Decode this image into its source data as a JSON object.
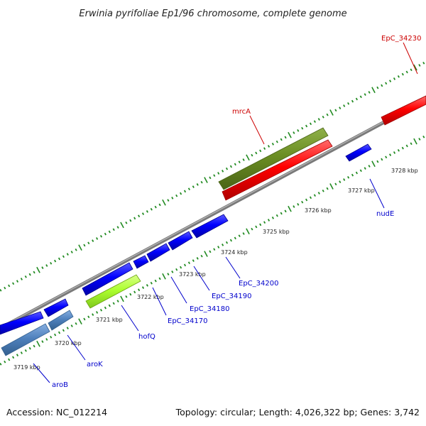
{
  "title": "Erwinia pyrifoliae Ep1/96 chromosome, complete genome",
  "footer": {
    "accession": "Accession: NC_012214",
    "topology": "Topology: circular; Length: 4,026,322 bp; Genes: 3,742"
  },
  "colors": {
    "forward_gene": "#ff0000",
    "reverse_gene": "#0000ff",
    "rna_gene": "#6b8e23",
    "selected_gene": "#adff2f",
    "operon_gene": "#4f81bd",
    "backbone": "#888888",
    "tick": "#228b22",
    "label_red": "#cc0000",
    "label_blue": "#0000cc"
  },
  "kbp_labels": [
    "3719 kbp",
    "3720 kbp",
    "3721 kbp",
    "3722 kbp",
    "3723 kbp",
    "3724 kbp",
    "3725 kbp",
    "3726 kbp",
    "3727 kbp",
    "3728 kbp"
  ],
  "gene_labels": [
    {
      "text": "EpC_34230",
      "color": "red"
    },
    {
      "text": "mrcA",
      "color": "red"
    },
    {
      "text": "nudE",
      "color": "blue"
    },
    {
      "text": "EpC_34200",
      "color": "blue"
    },
    {
      "text": "EpC_34190",
      "color": "blue"
    },
    {
      "text": "EpC_34180",
      "color": "blue"
    },
    {
      "text": "EpC_34170",
      "color": "blue"
    },
    {
      "text": "hofQ",
      "color": "blue"
    },
    {
      "text": "aroK",
      "color": "blue"
    },
    {
      "text": "aroB",
      "color": "blue"
    }
  ]
}
